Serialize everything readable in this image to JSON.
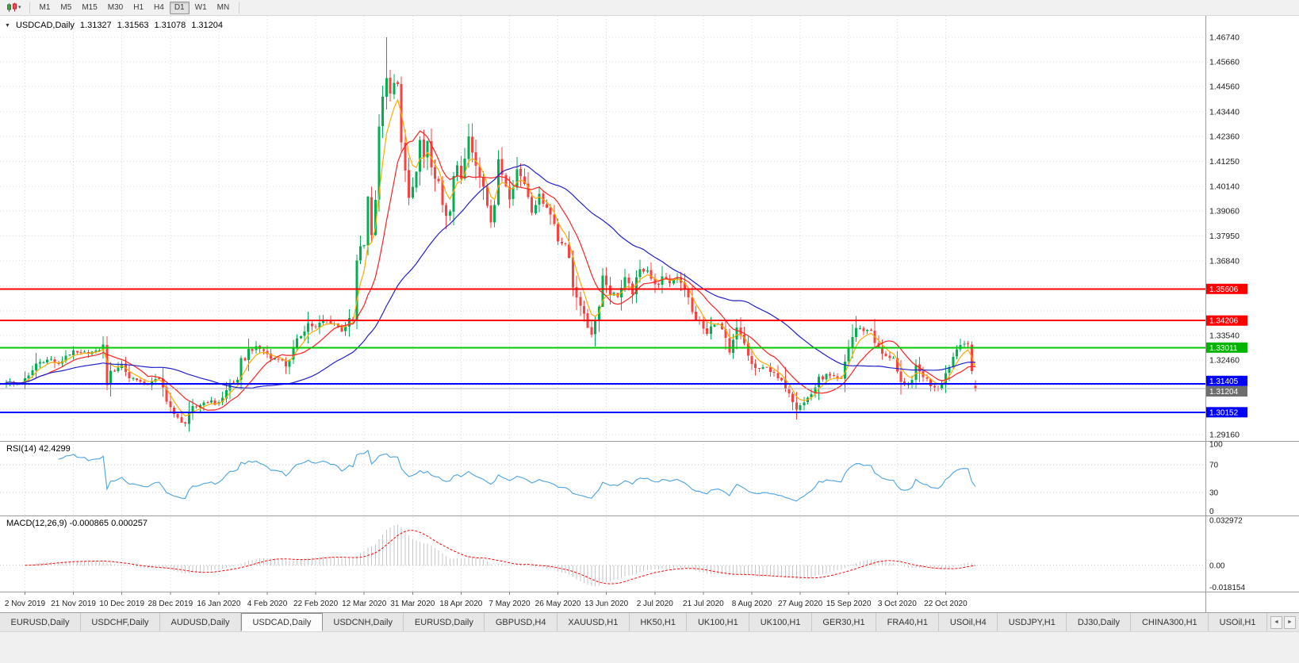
{
  "toolbar": {
    "timeframes": [
      "M1",
      "M5",
      "M15",
      "M30",
      "H1",
      "H4",
      "D1",
      "W1",
      "MN"
    ],
    "active_timeframe": "D1"
  },
  "icons": {
    "dropdown": "▾",
    "collapse": "▼",
    "tab_scroll_left": "◄",
    "tab_scroll_right": "►"
  },
  "chart_header": {
    "symbol": "USDCAD,Daily",
    "open": "1.31327",
    "high": "1.31563",
    "low": "1.31078",
    "close": "1.31204"
  },
  "price_axis": {
    "labels": [
      "1.46740",
      "1.45660",
      "1.44560",
      "1.43440",
      "1.42360",
      "1.41250",
      "1.40140",
      "1.39060",
      "1.37950",
      "1.36840",
      "1.33540",
      "1.32460",
      "1.29160"
    ],
    "level_boxes": [
      {
        "text": "1.35606",
        "value": 1.35606,
        "color": "#ff0000"
      },
      {
        "text": "1.34206",
        "value": 1.34206,
        "color": "#ff0000"
      },
      {
        "text": "1.33011",
        "value": 1.33011,
        "color": "#00b400"
      },
      {
        "text": "1.31405",
        "value": 1.31405,
        "color": "#0000ff"
      },
      {
        "text": "1.31204",
        "value": 1.31204,
        "color": "#6e6e6e"
      },
      {
        "text": "1.30152",
        "value": 1.30152,
        "color": "#0000ff"
      }
    ]
  },
  "chart_data": {
    "type": "candlestick",
    "symbol": "USDCAD",
    "timeframe": "Daily",
    "ohlc_current": {
      "open": 1.31327,
      "high": 1.31563,
      "low": 1.31078,
      "close": 1.31204
    },
    "price_range": [
      1.2888,
      1.4769
    ],
    "price_gridlines": [
      1.2916,
      1.3026,
      1.3136,
      1.3246,
      1.3354,
      1.3464,
      1.3574,
      1.3684,
      1.3795,
      1.3906,
      1.4014,
      1.4125,
      1.4236,
      1.4344,
      1.4456,
      1.4566,
      1.4674
    ],
    "x_labels": [
      "2 Nov 2019",
      "21 Nov 2019",
      "10 Dec 2019",
      "28 Dec 2019",
      "16 Jan 2020",
      "4 Feb 2020",
      "22 Feb 2020",
      "12 Mar 2020",
      "31 Mar 2020",
      "18 Apr 2020",
      "7 May 2020",
      "26 May 2020",
      "13 Jun 2020",
      "2 Jul 2020",
      "21 Jul 2020",
      "8 Aug 2020",
      "27 Aug 2020",
      "15 Sep 2020",
      "3 Oct 2020",
      "22 Oct 2020"
    ],
    "close_anchors": [
      [
        0,
        1.3152
      ],
      [
        2,
        1.314
      ],
      [
        4,
        1.3146
      ],
      [
        6,
        1.3172
      ],
      [
        8,
        1.323
      ],
      [
        10,
        1.3244
      ],
      [
        12,
        1.325
      ],
      [
        14,
        1.3222
      ],
      [
        16,
        1.3268
      ],
      [
        18,
        1.328
      ],
      [
        20,
        1.3274
      ],
      [
        22,
        1.328
      ],
      [
        24,
        1.3282
      ],
      [
        26,
        1.3308
      ],
      [
        27,
        1.3172
      ],
      [
        29,
        1.3205
      ],
      [
        31,
        1.3228
      ],
      [
        33,
        1.3168
      ],
      [
        35,
        1.3164
      ],
      [
        37,
        1.3128
      ],
      [
        39,
        1.3158
      ],
      [
        41,
        1.316
      ],
      [
        43,
        1.3078
      ],
      [
        45,
        1.2995
      ],
      [
        46,
        1.2988
      ],
      [
        48,
        1.2966
      ],
      [
        50,
        1.3028
      ],
      [
        52,
        1.3048
      ],
      [
        54,
        1.3068
      ],
      [
        56,
        1.3052
      ],
      [
        58,
        1.3076
      ],
      [
        60,
        1.3144
      ],
      [
        62,
        1.3152
      ],
      [
        63,
        1.3226
      ],
      [
        65,
        1.3288
      ],
      [
        67,
        1.33
      ],
      [
        69,
        1.3288
      ],
      [
        71,
        1.3252
      ],
      [
        73,
        1.3254
      ],
      [
        75,
        1.3222
      ],
      [
        77,
        1.3288
      ],
      [
        79,
        1.336
      ],
      [
        81,
        1.3408
      ],
      [
        83,
        1.3388
      ],
      [
        85,
        1.342
      ],
      [
        88,
        1.3408
      ],
      [
        90,
        1.338
      ],
      [
        92,
        1.342
      ],
      [
        93,
        1.3422
      ],
      [
        94,
        1.3658
      ],
      [
        95,
        1.3728
      ],
      [
        96,
        1.376
      ],
      [
        97,
        1.3925
      ],
      [
        98,
        1.3802
      ],
      [
        99,
        1.3988
      ],
      [
        100,
        1.4262
      ],
      [
        101,
        1.449
      ],
      [
        102,
        1.4496
      ],
      [
        103,
        1.4392
      ],
      [
        104,
        1.45
      ],
      [
        105,
        1.4448
      ],
      [
        106,
        1.418
      ],
      [
        107,
        1.406
      ],
      [
        108,
        1.399
      ],
      [
        109,
        1.4008
      ],
      [
        110,
        1.4058
      ],
      [
        111,
        1.421
      ],
      [
        112,
        1.414
      ],
      [
        113,
        1.4208
      ],
      [
        114,
        1.4088
      ],
      [
        115,
        1.402
      ],
      [
        116,
        1.403
      ],
      [
        117,
        1.396
      ],
      [
        118,
        1.3858
      ],
      [
        119,
        1.389
      ],
      [
        120,
        1.4088
      ],
      [
        121,
        1.412
      ],
      [
        122,
        1.4
      ],
      [
        123,
        1.4128
      ],
      [
        124,
        1.4218
      ],
      [
        125,
        1.4158
      ],
      [
        126,
        1.409
      ],
      [
        128,
        1.402
      ],
      [
        129,
        1.3948
      ],
      [
        130,
        1.388
      ],
      [
        131,
        1.3938
      ],
      [
        132,
        1.4088
      ],
      [
        133,
        1.4068
      ],
      [
        135,
        1.3978
      ],
      [
        137,
        1.4088
      ],
      [
        139,
        1.403
      ],
      [
        141,
        1.392
      ],
      [
        143,
        1.3968
      ],
      [
        145,
        1.3928
      ],
      [
        147,
        1.3848
      ],
      [
        148,
        1.378
      ],
      [
        150,
        1.376
      ],
      [
        152,
        1.357
      ],
      [
        154,
        1.3498
      ],
      [
        155,
        1.342
      ],
      [
        157,
        1.3368
      ],
      [
        158,
        1.342
      ],
      [
        160,
        1.3618
      ],
      [
        162,
        1.3548
      ],
      [
        164,
        1.353
      ],
      [
        166,
        1.3598
      ],
      [
        168,
        1.3548
      ],
      [
        170,
        1.3638
      ],
      [
        172,
        1.3648
      ],
      [
        174,
        1.357
      ],
      [
        176,
        1.3608
      ],
      [
        178,
        1.359
      ],
      [
        180,
        1.3618
      ],
      [
        182,
        1.357
      ],
      [
        184,
        1.345
      ],
      [
        186,
        1.341
      ],
      [
        188,
        1.3358
      ],
      [
        190,
        1.3418
      ],
      [
        192,
        1.338
      ],
      [
        194,
        1.3262
      ],
      [
        196,
        1.3378
      ],
      [
        198,
        1.3318
      ],
      [
        200,
        1.3222
      ],
      [
        202,
        1.3198
      ],
      [
        204,
        1.3222
      ],
      [
        206,
        1.3178
      ],
      [
        208,
        1.3148
      ],
      [
        210,
        1.3108
      ],
      [
        212,
        1.3042
      ],
      [
        214,
        1.3058
      ],
      [
        216,
        1.3098
      ],
      [
        218,
        1.3158
      ],
      [
        220,
        1.3178
      ],
      [
        222,
        1.3168
      ],
      [
        224,
        1.3158
      ],
      [
        226,
        1.3308
      ],
      [
        228,
        1.3388
      ],
      [
        230,
        1.3378
      ],
      [
        232,
        1.3378
      ],
      [
        234,
        1.3288
      ],
      [
        236,
        1.3258
      ],
      [
        238,
        1.3258
      ],
      [
        240,
        1.3122
      ],
      [
        242,
        1.3138
      ],
      [
        244,
        1.3208
      ],
      [
        246,
        1.3178
      ],
      [
        248,
        1.3138
      ],
      [
        250,
        1.3122
      ],
      [
        252,
        1.3188
      ],
      [
        254,
        1.3262
      ],
      [
        256,
        1.333
      ],
      [
        257,
        1.332
      ],
      [
        258,
        1.3306
      ],
      [
        259,
        1.319
      ],
      [
        260,
        1.31204
      ]
    ],
    "extremes": {
      "high": 1.4674,
      "low": 1.2951,
      "sep_dip_low": 1.2994,
      "sep_dip_index": 212
    },
    "horizontal_lines": [
      {
        "value": 1.35606,
        "color": "#ff0000",
        "width": 2
      },
      {
        "value": 1.34206,
        "color": "#ff0000",
        "width": 2
      },
      {
        "value": 1.33011,
        "color": "#00c800",
        "width": 2
      },
      {
        "value": 1.31405,
        "color": "#0000ff",
        "width": 2
      },
      {
        "value": 1.30152,
        "color": "#0000ff",
        "width": 2
      }
    ],
    "current_price_line": {
      "value": 1.31204,
      "color": "#b0b0b0",
      "width": 1
    },
    "moving_averages": [
      {
        "name": "ma-fast",
        "period": 5,
        "type": "ema",
        "color": "#ffaa00"
      },
      {
        "name": "ma-mid",
        "period": 12,
        "type": "sma",
        "color": "#ff2020"
      },
      {
        "name": "ma-slow",
        "period": 40,
        "type": "sma",
        "color": "#2020cc"
      }
    ],
    "rsi": {
      "label": "RSI(14) 42.4299",
      "period": 14,
      "current": 42.4299,
      "levels": [
        100,
        70,
        30,
        0
      ],
      "dotted_levels": [
        70,
        30
      ],
      "color": "#4aa3e0"
    },
    "macd": {
      "label": "MACD(12,26,9) -0.000865 0.000257",
      "fast": 12,
      "slow": 26,
      "signal": 9,
      "current_macd": -0.000865,
      "current_signal": 0.000257,
      "scale_max": 0.032972,
      "scale_min": -0.018154,
      "axis_labels": [
        "0.032972",
        "0.00",
        "-0.018154"
      ],
      "histogram_color": "#c6c6c6",
      "signal_color": "#ff0000"
    },
    "colors": {
      "bull": "#00b050",
      "bear": "#ff4040",
      "grid": "#d9d9d9",
      "separator": "#9c9c9c"
    }
  },
  "tabs": {
    "items": [
      "EURUSD,Daily",
      "USDCHF,Daily",
      "AUDUSD,Daily",
      "USDCAD,Daily",
      "USDCNH,Daily",
      "EURUSD,Daily",
      "GBPUSD,H4",
      "XAUUSD,H1",
      "HK50,H1",
      "UK100,H1",
      "UK100,H1",
      "GER30,H1",
      "FRA40,H1",
      "USOil,H4",
      "USDJPY,H1",
      "DJ30,Daily",
      "CHINA300,H1",
      "USOil,H1"
    ],
    "active_index": 3
  }
}
